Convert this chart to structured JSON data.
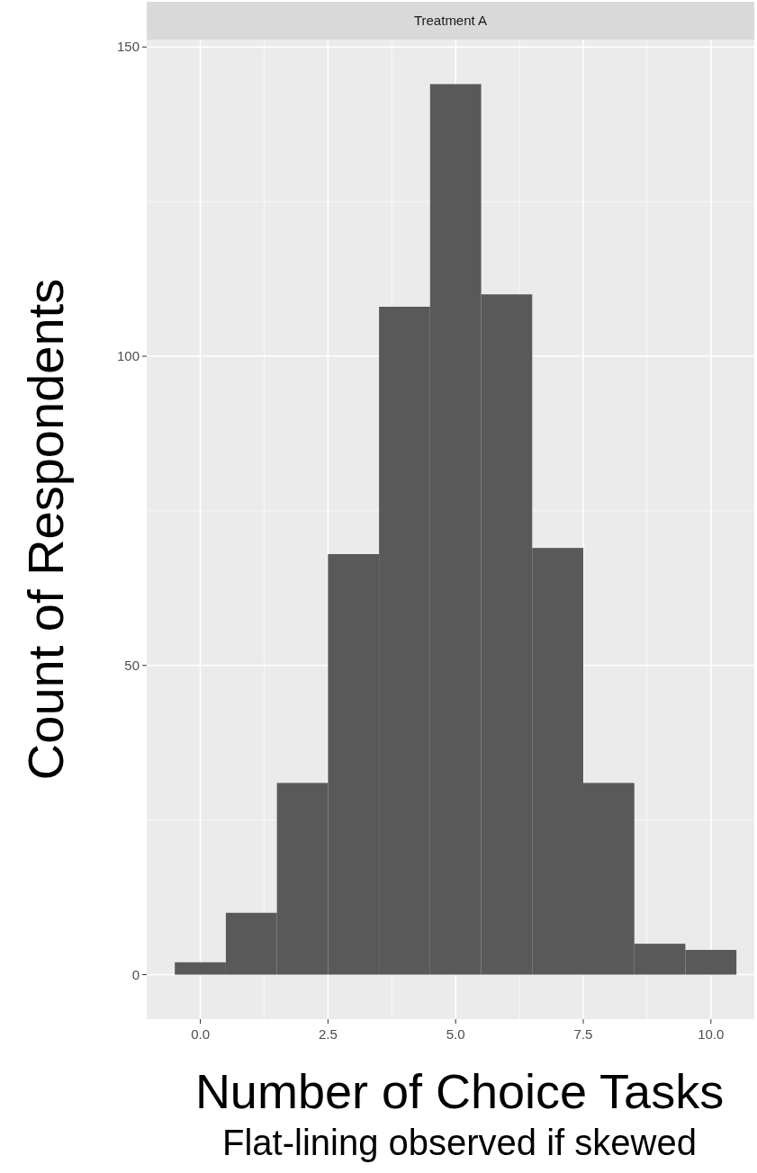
{
  "chart_data": {
    "type": "histogram",
    "title": "Treatment A",
    "xlabel": "Number of Choice Tasks",
    "ylabel": "Count of Respondents",
    "annotations": [
      "Flat-lining observed if skewed"
    ],
    "bins": [
      -0.5,
      0.5,
      1.5,
      2.5,
      3.5,
      4.5,
      5.5,
      6.5,
      7.5,
      8.5,
      9.5,
      10.5
    ],
    "values": [
      2,
      10,
      31,
      68,
      108,
      144,
      110,
      69,
      31,
      5,
      4
    ],
    "color": "#595959",
    "xlim": [
      -1.05,
      10.85
    ],
    "xticks": [
      {
        "value": 0,
        "label": "0.0"
      },
      {
        "value": 2.5,
        "label": "2.5"
      },
      {
        "value": 5,
        "label": "5.0"
      },
      {
        "value": 7.5,
        "label": "7.5"
      },
      {
        "value": 10,
        "label": "10.0"
      }
    ],
    "ylim": [
      -7.2,
      151.2
    ],
    "yticks": [
      0,
      50,
      100,
      150
    ],
    "grid": true
  }
}
